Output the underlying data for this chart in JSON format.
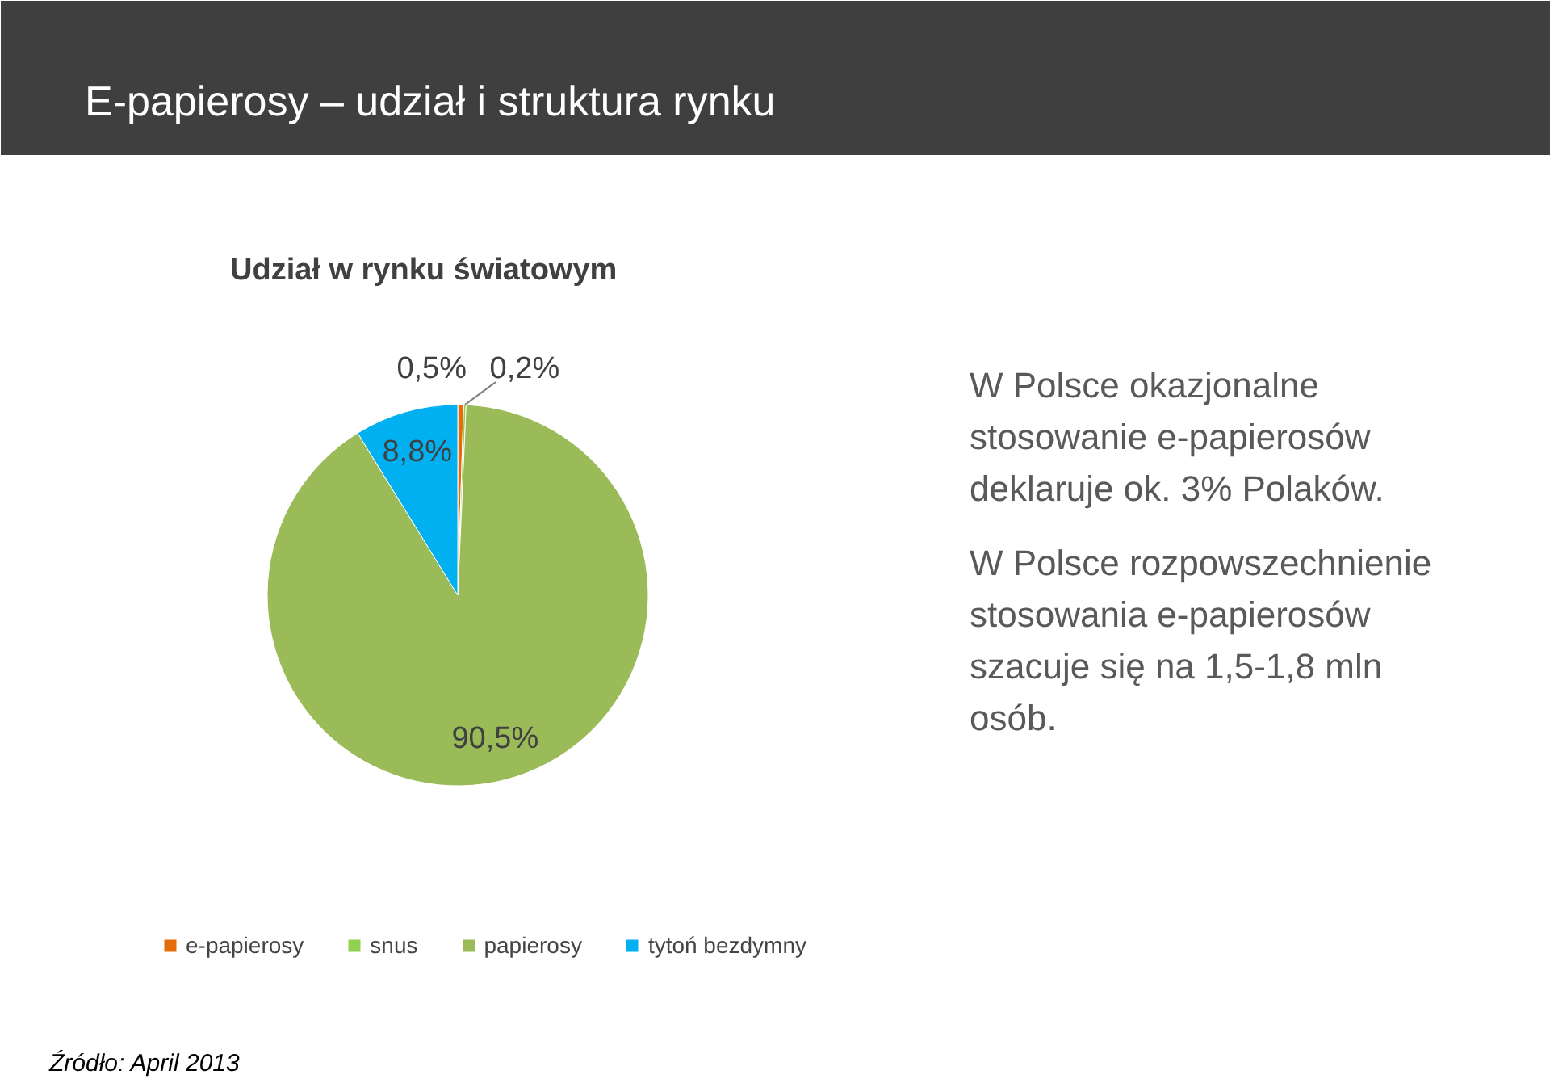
{
  "chart_data": {
    "type": "pie",
    "title": "E-papierosy – udział i struktura rynku",
    "subtitle": "Udział w rynku światowym",
    "categories": [
      "e-papierosy",
      "snus",
      "papierosy",
      "tytoń bezdymny"
    ],
    "values": [
      0.5,
      0.2,
      90.5,
      8.8
    ],
    "colors": [
      "#e46c0a",
      "#92d050",
      "#9bbb59",
      "#00b0f0"
    ],
    "value_labels": [
      "0,5%",
      "0,2%",
      "90,5%",
      "8,8%"
    ],
    "legend": "bottom",
    "annotations": [
      "W Polsce okazjonalne stosowanie e-papierosów deklaruje ok. 3% Polaków.",
      "W Polsce rozpowszechnienie stosowania e-papierosów szacuje się na 1,5-1,8 mln osób.",
      "Źródło: April 2013"
    ]
  }
}
